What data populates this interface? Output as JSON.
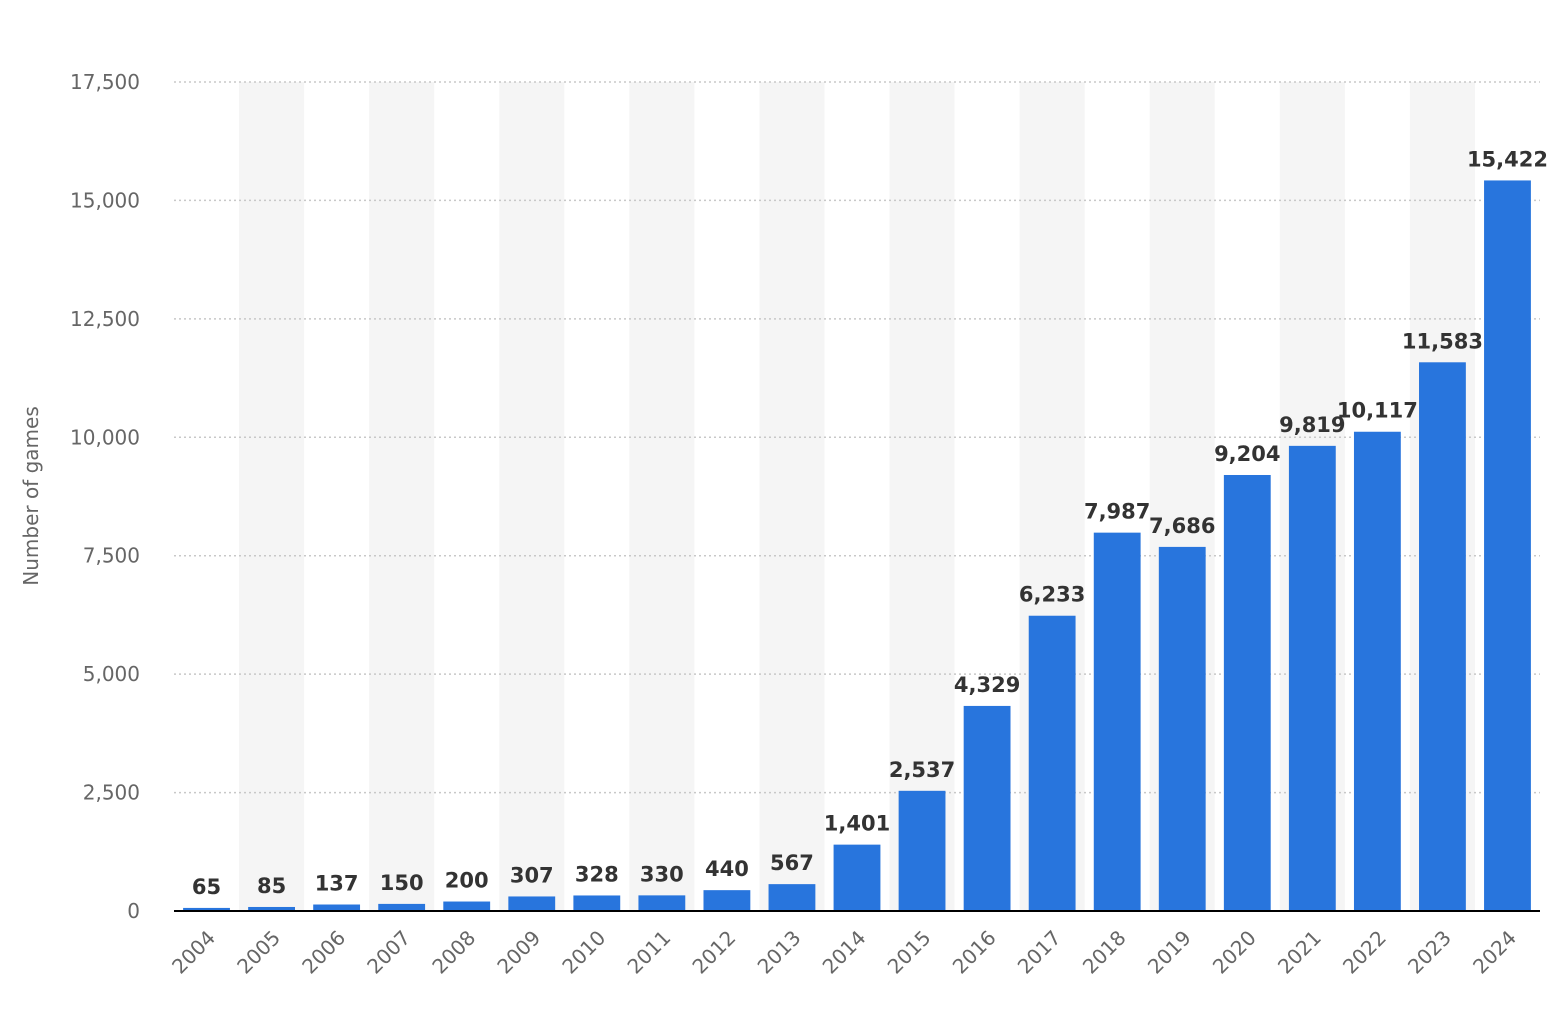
{
  "chart_data": {
    "type": "bar",
    "categories": [
      "2004",
      "2005",
      "2006",
      "2007",
      "2008",
      "2009",
      "2010",
      "2011",
      "2012",
      "2013",
      "2014",
      "2015",
      "2016",
      "2017",
      "2018",
      "2019",
      "2020",
      "2021",
      "2022",
      "2023",
      "2024"
    ],
    "values": [
      65,
      85,
      137,
      150,
      200,
      307,
      328,
      330,
      440,
      567,
      1401,
      2537,
      4329,
      6233,
      7987,
      7686,
      9204,
      9819,
      10117,
      11583,
      15422
    ],
    "value_labels": [
      "65",
      "85",
      "137",
      "150",
      "200",
      "307",
      "328",
      "330",
      "440",
      "567",
      "1,401",
      "2,537",
      "4,329",
      "6,233",
      "7,987",
      "7,686",
      "9,204",
      "9,819",
      "10,117",
      "11,583",
      "15,422"
    ],
    "xlabel": "",
    "ylabel": "Number of games",
    "ylim": [
      0,
      17500
    ],
    "yticks": [
      0,
      2500,
      5000,
      7500,
      10000,
      12500,
      15000,
      17500
    ],
    "ytick_labels": [
      "0",
      "2,500",
      "5,000",
      "7,500",
      "10,000",
      "12,500",
      "15,000",
      "17,500"
    ],
    "grid": true,
    "colors": {
      "bar": "#2875dd",
      "band": "#f5f5f5",
      "grid": "#c8c8c8",
      "axis": "#000000"
    }
  }
}
